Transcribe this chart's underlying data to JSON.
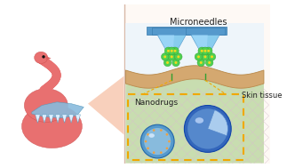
{
  "bg_color": "#ffffff",
  "left_bg": "#ffffff",
  "right_bg": "#fef9f5",
  "divider_color": "#d8b8a8",
  "bird_color": "#e87070",
  "bird_edge": "#cc5050",
  "wing_color": "#88bbdd",
  "wing_edge": "#5599bb",
  "eye_color": "#111111",
  "zoom_tri_color": "#f5b898",
  "sky_color": "#eef5fa",
  "skin_outer_color": "#d4a870",
  "skin_outer_edge": "#b88848",
  "skin_inner_color": "#c8ddb0",
  "cross_color": "#d8c0cc",
  "needle_plate_color": "#5599cc",
  "needle_body_color": "#88ccee",
  "needle_highlight": "#aaddff",
  "nano_green": "#50d050",
  "nano_green_edge": "#30a030",
  "nano_yellow": "#f0d820",
  "dashed_box_color": "#f0a800",
  "line_color": "#f0a800",
  "sphere1_outer": "#5599cc",
  "sphere1_inner": "#88bbdd",
  "sphere1_dot": "#f0a040",
  "sphere2_outer": "#3366bb",
  "sphere2_mid": "#5588cc",
  "sphere2_wedge": "#aaccee",
  "label_microneedles": "Microneedles",
  "label_skin": "Skin tissue",
  "label_nano": "Nanodrugs",
  "text_color": "#222222"
}
